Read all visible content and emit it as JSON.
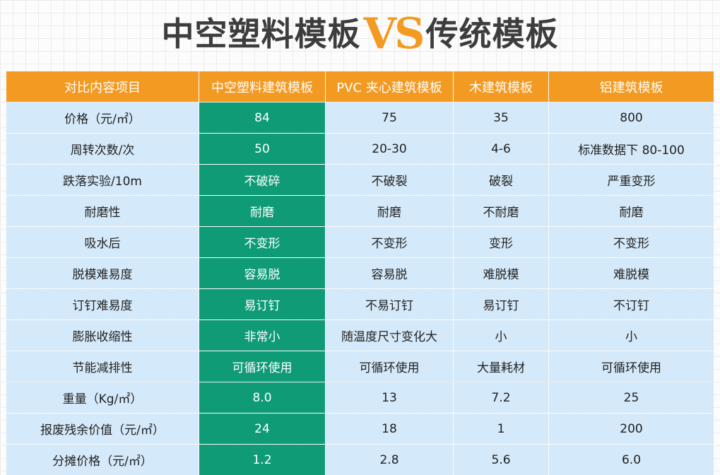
{
  "title": {
    "left": "中空塑料模板",
    "vs": "VS",
    "right": "传统模板"
  },
  "colors": {
    "header_bg": "#f39a22",
    "highlight_column_bg": "#0f9b76",
    "cell_bg": "#d4e9f9",
    "vs_color": "#f39a22",
    "title_color": "#3d3d3d"
  },
  "table": {
    "headers": [
      "对比内容项目",
      "中空塑料建筑模板",
      "PVC 夹心建筑模板",
      "木建筑模板",
      "铝建筑模板"
    ],
    "rows": [
      [
        "价格（元/㎡）",
        "84",
        "75",
        "35",
        "800"
      ],
      [
        "周转次数/次",
        "50",
        "20-30",
        "4-6",
        "标准数据下 80-100"
      ],
      [
        "跌落实验/10m",
        "不破碎",
        "不破裂",
        "破裂",
        "严重变形"
      ],
      [
        "耐磨性",
        "耐磨",
        "耐磨",
        "不耐磨",
        "耐磨"
      ],
      [
        "吸水后",
        "不变形",
        "不变形",
        "变形",
        "不变形"
      ],
      [
        "脱模难易度",
        "容易脱",
        "容易脱",
        "难脱模",
        "难脱模"
      ],
      [
        "订钉难易度",
        "易订钉",
        "不易订钉",
        "易订钉",
        "不订钉"
      ],
      [
        "膨胀收缩性",
        "非常小",
        "随温度尺寸变化大",
        "小",
        "小"
      ],
      [
        "节能减排性",
        "可循环使用",
        "可循环使用",
        "大量耗材",
        "可循环使用"
      ],
      [
        "重量（Kg/㎡）",
        "8.0",
        "13",
        "7.2",
        "25"
      ],
      [
        "报废残余价值（元/㎡）",
        "24",
        "18",
        "1",
        "200"
      ],
      [
        "分摊价格（元/㎡）",
        "1.2",
        "2.8",
        "5.6",
        "6.0"
      ]
    ]
  }
}
